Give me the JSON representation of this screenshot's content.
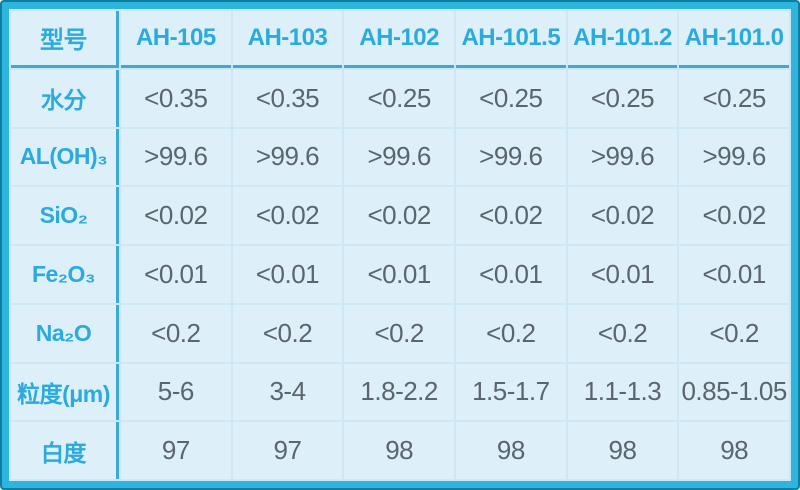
{
  "colors": {
    "accent_text": "#2baadd",
    "value_text": "#5b656e",
    "cell_background": "#ddeff8",
    "grid_line": "#cde8f4",
    "outer_border": "#2db4df",
    "outer_border_edge": "#0f7e9c",
    "thick_separator": "#3fa9d6"
  },
  "table": {
    "header": {
      "corner": "型号",
      "columns": [
        "AH-105",
        "AH-103",
        "AH-102",
        "AH-101.5",
        "AH-101.2",
        "AH-101.0"
      ]
    },
    "rows": [
      {
        "label": "水分",
        "values": [
          "<0.35",
          "<0.35",
          "<0.25",
          "<0.25",
          "<0.25",
          "<0.25"
        ]
      },
      {
        "label": "AL(OH)₃",
        "values": [
          ">99.6",
          ">99.6",
          ">99.6",
          ">99.6",
          ">99.6",
          ">99.6"
        ]
      },
      {
        "label": "SiO₂",
        "values": [
          "<0.02",
          "<0.02",
          "<0.02",
          "<0.02",
          "<0.02",
          "<0.02"
        ]
      },
      {
        "label": "Fe₂O₃",
        "values": [
          "<0.01",
          "<0.01",
          "<0.01",
          "<0.01",
          "<0.01",
          "<0.01"
        ]
      },
      {
        "label": "Na₂O",
        "values": [
          "<0.2",
          "<0.2",
          "<0.2",
          "<0.2",
          "<0.2",
          "<0.2"
        ]
      },
      {
        "label": "粒度(μm)",
        "values": [
          "5-6",
          "3-4",
          "1.8-2.2",
          "1.5-1.7",
          "1.1-1.3",
          "0.85-1.05"
        ]
      },
      {
        "label": "白度",
        "values": [
          "97",
          "97",
          "98",
          "98",
          "98",
          "98"
        ]
      }
    ]
  },
  "chart_data": {
    "type": "table",
    "title": "",
    "columns": [
      "型号",
      "AH-105",
      "AH-103",
      "AH-102",
      "AH-101.5",
      "AH-101.2",
      "AH-101.0"
    ],
    "rows": [
      [
        "水分",
        "<0.35",
        "<0.35",
        "<0.25",
        "<0.25",
        "<0.25",
        "<0.25"
      ],
      [
        "AL(OH)₃",
        ">99.6",
        ">99.6",
        ">99.6",
        ">99.6",
        ">99.6",
        ">99.6"
      ],
      [
        "SiO₂",
        "<0.02",
        "<0.02",
        "<0.02",
        "<0.02",
        "<0.02",
        "<0.02"
      ],
      [
        "Fe₂O₃",
        "<0.01",
        "<0.01",
        "<0.01",
        "<0.01",
        "<0.01",
        "<0.01"
      ],
      [
        "Na₂O",
        "<0.2",
        "<0.2",
        "<0.2",
        "<0.2",
        "<0.2",
        "<0.2"
      ],
      [
        "粒度(μm)",
        "5-6",
        "3-4",
        "1.8-2.2",
        "1.5-1.7",
        "1.1-1.3",
        "0.85-1.05"
      ],
      [
        "白度",
        "97",
        "97",
        "98",
        "98",
        "98",
        "98"
      ]
    ]
  }
}
